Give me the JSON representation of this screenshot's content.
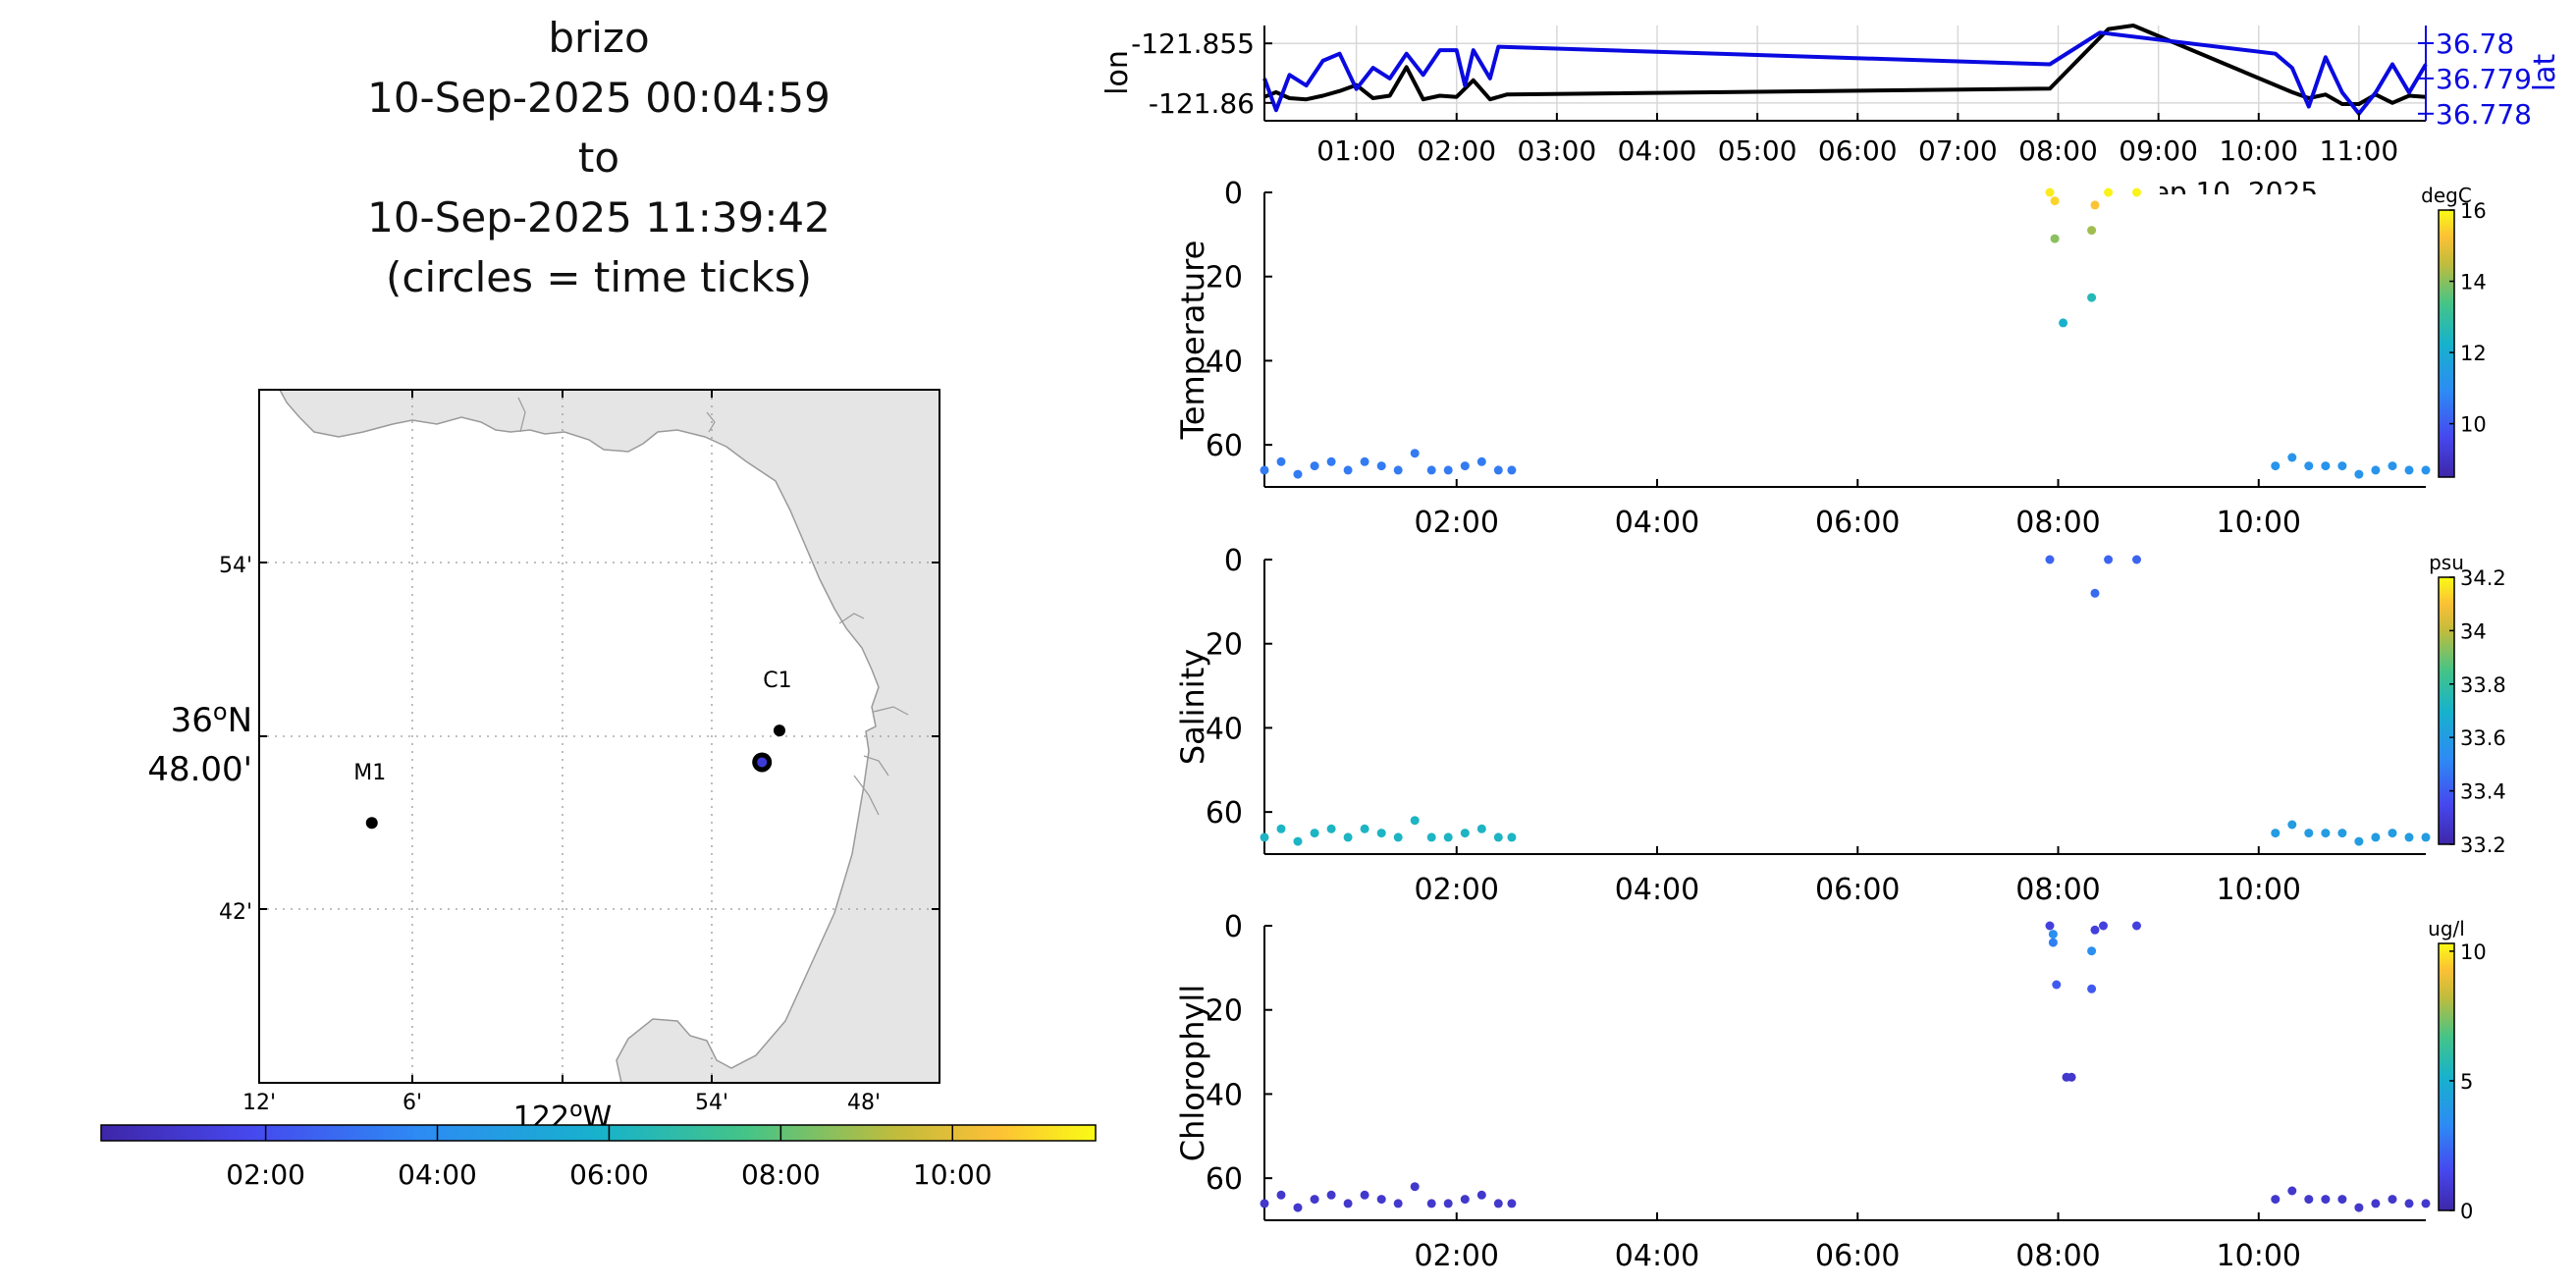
{
  "title": {
    "name": "brizo",
    "start": "10-Sep-2025 00:04:59",
    "to": "to",
    "end": "10-Sep-2025 11:39:42",
    "note": "(circles = time ticks)"
  },
  "map": {
    "stations": [
      {
        "name": "M1",
        "lon_min_w": 7.5,
        "lat_min_n": 45.0
      },
      {
        "name": "C1",
        "lon_min_w": 51.3,
        "lat_min_n": 48.2
      }
    ],
    "track_marker": {
      "lon_min_w": 52.0,
      "lat_min_n": 47.1
    },
    "lat_ticks": [
      "54'",
      "48.00'",
      "42'"
    ],
    "lat_degree_label": "36",
    "lat_degree_suffix": "N",
    "lon_ticks": [
      "12'",
      "6'",
      "54'",
      "48'"
    ],
    "lon_degree_label": "122",
    "lon_degree_suffix": "W",
    "land_color": "#e5e5e5",
    "colorbar_ticks": [
      "02:00",
      "04:00",
      "06:00",
      "08:00",
      "10:00"
    ]
  },
  "chart_data": [
    {
      "type": "line",
      "title": "",
      "xlabel": "",
      "x_ticks": [
        "01:00",
        "02:00",
        "03:00",
        "04:00",
        "05:00",
        "06:00",
        "07:00",
        "08:00",
        "09:00",
        "10:00",
        "11:00"
      ],
      "x_date_label": "Sep 10, 2025",
      "xlim": [
        "00:05",
        "11:40"
      ],
      "left_axis": {
        "label": "lon",
        "ticks": [
          "-121.855",
          "-121.86"
        ],
        "ylim": [
          -121.8615,
          -121.8535
        ]
      },
      "right_axis": {
        "label": "lat",
        "ticks": [
          "36.78",
          "36.779",
          "36.778"
        ],
        "ylim": [
          36.7778,
          36.7805
        ],
        "color": "#0a0ae0"
      },
      "series": [
        {
          "axis": "left",
          "color": "#000000",
          "x": [
            "00:05",
            "00:12",
            "00:20",
            "00:30",
            "00:40",
            "00:50",
            "01:00",
            "01:10",
            "01:20",
            "01:30",
            "01:40",
            "01:50",
            "02:00",
            "02:10",
            "02:20",
            "02:30",
            "07:55",
            "08:30",
            "08:45",
            "10:20",
            "10:30",
            "10:40",
            "10:50",
            "11:00",
            "11:10",
            "11:20",
            "11:30",
            "11:40"
          ],
          "values": [
            -121.8595,
            -121.8591,
            -121.8596,
            -121.8597,
            -121.8594,
            -121.859,
            -121.8585,
            -121.8596,
            -121.8594,
            -121.857,
            -121.8597,
            -121.8594,
            -121.8595,
            -121.8581,
            -121.8597,
            -121.8593,
            -121.8588,
            -121.8538,
            -121.8535,
            -121.8591,
            -121.8596,
            -121.8593,
            -121.8601,
            -121.8601,
            -121.8593,
            -121.86,
            -121.8594,
            -121.8595
          ]
        },
        {
          "axis": "right",
          "color": "#0a0ae0",
          "x": [
            "00:05",
            "00:12",
            "00:20",
            "00:30",
            "00:40",
            "00:50",
            "01:00",
            "01:10",
            "01:20",
            "01:30",
            "01:40",
            "01:50",
            "02:00",
            "02:05",
            "02:10",
            "02:20",
            "02:25",
            "07:55",
            "08:25",
            "10:10",
            "10:20",
            "10:30",
            "10:40",
            "10:50",
            "11:00",
            "11:10",
            "11:20",
            "11:30",
            "11:40"
          ],
          "values": [
            36.779,
            36.7781,
            36.7791,
            36.7788,
            36.7795,
            36.7797,
            36.7787,
            36.7793,
            36.779,
            36.7797,
            36.7791,
            36.7798,
            36.7798,
            36.7788,
            36.7798,
            36.779,
            36.7799,
            36.7794,
            36.7803,
            36.7797,
            36.7793,
            36.7782,
            36.7796,
            36.7786,
            36.778,
            36.7786,
            36.7794,
            36.7786,
            36.7794
          ]
        }
      ]
    },
    {
      "type": "scatter",
      "ylabel": "Temperature",
      "colorbar": {
        "unit": "degC",
        "ticks": [
          16,
          14,
          12,
          10
        ],
        "range": [
          8.5,
          16
        ]
      },
      "x_ticks": [
        "02:00",
        "04:00",
        "06:00",
        "08:00",
        "10:00"
      ],
      "y_ticks": [
        0,
        20,
        40,
        60
      ],
      "ylim": [
        70,
        0
      ],
      "points": [
        {
          "t": "00:05",
          "d": 66,
          "c": 10.6
        },
        {
          "t": "00:15",
          "d": 64,
          "c": 10.6
        },
        {
          "t": "00:25",
          "d": 67,
          "c": 10.6
        },
        {
          "t": "00:35",
          "d": 65,
          "c": 10.6
        },
        {
          "t": "00:45",
          "d": 64,
          "c": 10.6
        },
        {
          "t": "00:55",
          "d": 66,
          "c": 10.6
        },
        {
          "t": "01:05",
          "d": 64,
          "c": 10.6
        },
        {
          "t": "01:15",
          "d": 65,
          "c": 10.6
        },
        {
          "t": "01:25",
          "d": 66,
          "c": 10.6
        },
        {
          "t": "01:35",
          "d": 62,
          "c": 10.6
        },
        {
          "t": "01:45",
          "d": 66,
          "c": 10.6
        },
        {
          "t": "01:55",
          "d": 66,
          "c": 10.6
        },
        {
          "t": "02:05",
          "d": 65,
          "c": 10.6
        },
        {
          "t": "02:15",
          "d": 64,
          "c": 10.6
        },
        {
          "t": "02:25",
          "d": 66,
          "c": 10.6
        },
        {
          "t": "02:33",
          "d": 66,
          "c": 10.6
        },
        {
          "t": "07:55",
          "d": 0,
          "c": 15.8
        },
        {
          "t": "07:58",
          "d": 2,
          "c": 15.5
        },
        {
          "t": "07:58",
          "d": 11,
          "c": 14.0
        },
        {
          "t": "08:03",
          "d": 31,
          "c": 12.2
        },
        {
          "t": "08:20",
          "d": 9,
          "c": 14.2
        },
        {
          "t": "08:22",
          "d": 3,
          "c": 15.3
        },
        {
          "t": "08:20",
          "d": 25,
          "c": 12.6
        },
        {
          "t": "08:30",
          "d": 0,
          "c": 15.9
        },
        {
          "t": "08:47",
          "d": 0,
          "c": 15.9
        },
        {
          "t": "10:10",
          "d": 65,
          "c": 11.2
        },
        {
          "t": "10:20",
          "d": 63,
          "c": 11.2
        },
        {
          "t": "10:30",
          "d": 65,
          "c": 11.2
        },
        {
          "t": "10:40",
          "d": 65,
          "c": 11.2
        },
        {
          "t": "10:50",
          "d": 65,
          "c": 11.2
        },
        {
          "t": "11:00",
          "d": 67,
          "c": 11.2
        },
        {
          "t": "11:10",
          "d": 66,
          "c": 11.2
        },
        {
          "t": "11:20",
          "d": 65,
          "c": 11.2
        },
        {
          "t": "11:30",
          "d": 66,
          "c": 11.2
        },
        {
          "t": "11:40",
          "d": 66,
          "c": 11.2
        }
      ]
    },
    {
      "type": "scatter",
      "ylabel": "Salinity",
      "colorbar": {
        "unit": "psu",
        "ticks": [
          34.2,
          34,
          33.8,
          33.6,
          33.4,
          33.2
        ],
        "range": [
          33.2,
          34.2
        ]
      },
      "x_ticks": [
        "02:00",
        "04:00",
        "06:00",
        "08:00",
        "10:00"
      ],
      "y_ticks": [
        0,
        20,
        40,
        60
      ],
      "ylim": [
        70,
        0
      ],
      "points": [
        {
          "t": "00:05",
          "d": 66,
          "c": 33.72
        },
        {
          "t": "00:15",
          "d": 64,
          "c": 33.72
        },
        {
          "t": "00:25",
          "d": 67,
          "c": 33.72
        },
        {
          "t": "00:35",
          "d": 65,
          "c": 33.72
        },
        {
          "t": "00:45",
          "d": 64,
          "c": 33.72
        },
        {
          "t": "00:55",
          "d": 66,
          "c": 33.72
        },
        {
          "t": "01:05",
          "d": 64,
          "c": 33.72
        },
        {
          "t": "01:15",
          "d": 65,
          "c": 33.72
        },
        {
          "t": "01:25",
          "d": 66,
          "c": 33.72
        },
        {
          "t": "01:35",
          "d": 62,
          "c": 33.72
        },
        {
          "t": "01:45",
          "d": 66,
          "c": 33.72
        },
        {
          "t": "01:55",
          "d": 66,
          "c": 33.72
        },
        {
          "t": "02:05",
          "d": 65,
          "c": 33.72
        },
        {
          "t": "02:15",
          "d": 64,
          "c": 33.72
        },
        {
          "t": "02:25",
          "d": 66,
          "c": 33.72
        },
        {
          "t": "02:33",
          "d": 66,
          "c": 33.72
        },
        {
          "t": "07:55",
          "d": 0,
          "c": 33.42
        },
        {
          "t": "08:22",
          "d": 8,
          "c": 33.44
        },
        {
          "t": "08:30",
          "d": 0,
          "c": 33.42
        },
        {
          "t": "08:47",
          "d": 0,
          "c": 33.42
        },
        {
          "t": "10:10",
          "d": 65,
          "c": 33.6
        },
        {
          "t": "10:20",
          "d": 63,
          "c": 33.6
        },
        {
          "t": "10:30",
          "d": 65,
          "c": 33.6
        },
        {
          "t": "10:40",
          "d": 65,
          "c": 33.6
        },
        {
          "t": "10:50",
          "d": 65,
          "c": 33.6
        },
        {
          "t": "11:00",
          "d": 67,
          "c": 33.6
        },
        {
          "t": "11:10",
          "d": 66,
          "c": 33.6
        },
        {
          "t": "11:20",
          "d": 65,
          "c": 33.6
        },
        {
          "t": "11:30",
          "d": 66,
          "c": 33.6
        },
        {
          "t": "11:40",
          "d": 66,
          "c": 33.6
        }
      ]
    },
    {
      "type": "scatter",
      "ylabel": "Chlorophyll",
      "colorbar": {
        "unit": "ug/l",
        "ticks": [
          10,
          5,
          0
        ],
        "range": [
          0,
          10.3
        ]
      },
      "x_ticks": [
        "02:00",
        "04:00",
        "06:00",
        "08:00",
        "10:00"
      ],
      "y_ticks": [
        0,
        20,
        40,
        60
      ],
      "ylim": [
        70,
        0
      ],
      "points": [
        {
          "t": "00:05",
          "d": 66,
          "c": 0.8
        },
        {
          "t": "00:15",
          "d": 64,
          "c": 0.8
        },
        {
          "t": "00:25",
          "d": 67,
          "c": 0.8
        },
        {
          "t": "00:35",
          "d": 65,
          "c": 0.8
        },
        {
          "t": "00:45",
          "d": 64,
          "c": 0.8
        },
        {
          "t": "00:55",
          "d": 66,
          "c": 0.8
        },
        {
          "t": "01:05",
          "d": 64,
          "c": 0.8
        },
        {
          "t": "01:15",
          "d": 65,
          "c": 0.8
        },
        {
          "t": "01:25",
          "d": 66,
          "c": 0.8
        },
        {
          "t": "01:35",
          "d": 62,
          "c": 0.8
        },
        {
          "t": "01:45",
          "d": 66,
          "c": 0.8
        },
        {
          "t": "01:55",
          "d": 66,
          "c": 0.8
        },
        {
          "t": "02:05",
          "d": 65,
          "c": 0.8
        },
        {
          "t": "02:15",
          "d": 64,
          "c": 0.8
        },
        {
          "t": "02:25",
          "d": 66,
          "c": 0.8
        },
        {
          "t": "02:33",
          "d": 66,
          "c": 0.8
        },
        {
          "t": "07:55",
          "d": 0,
          "c": 1.2
        },
        {
          "t": "07:57",
          "d": 2,
          "c": 3.5
        },
        {
          "t": "07:57",
          "d": 4,
          "c": 3.0
        },
        {
          "t": "07:59",
          "d": 14,
          "c": 2.0
        },
        {
          "t": "08:05",
          "d": 36,
          "c": 0.8
        },
        {
          "t": "08:08",
          "d": 36,
          "c": 0.8
        },
        {
          "t": "08:20",
          "d": 6,
          "c": 3.5
        },
        {
          "t": "08:20",
          "d": 15,
          "c": 2.0
        },
        {
          "t": "08:22",
          "d": 1,
          "c": 1.2
        },
        {
          "t": "08:27",
          "d": 0,
          "c": 1.2
        },
        {
          "t": "08:47",
          "d": 0,
          "c": 1.2
        },
        {
          "t": "10:10",
          "d": 65,
          "c": 0.8
        },
        {
          "t": "10:20",
          "d": 63,
          "c": 0.8
        },
        {
          "t": "10:30",
          "d": 65,
          "c": 0.8
        },
        {
          "t": "10:40",
          "d": 65,
          "c": 0.8
        },
        {
          "t": "10:50",
          "d": 65,
          "c": 0.8
        },
        {
          "t": "11:00",
          "d": 67,
          "c": 0.8
        },
        {
          "t": "11:10",
          "d": 66,
          "c": 0.8
        },
        {
          "t": "11:20",
          "d": 65,
          "c": 0.8
        },
        {
          "t": "11:30",
          "d": 66,
          "c": 0.8
        },
        {
          "t": "11:40",
          "d": 66,
          "c": 0.8
        }
      ]
    }
  ]
}
